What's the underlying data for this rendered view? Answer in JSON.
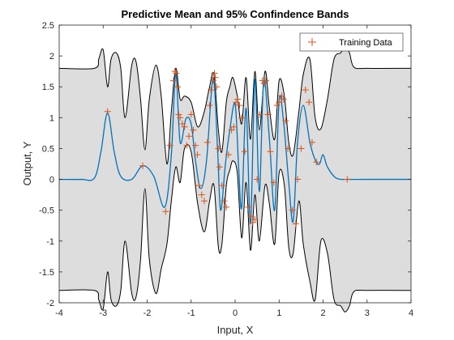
{
  "chart_data": {
    "type": "line",
    "title": "Predictive Mean and 95% Confindence Bands",
    "xlabel": "Input, X",
    "ylabel": "Output, Y",
    "xlim": [
      -4,
      4
    ],
    "ylim": [
      -2,
      2.5
    ],
    "xticks": [
      -4,
      -3,
      -2,
      -1,
      0,
      1,
      2,
      3,
      4
    ],
    "yticks": [
      -2,
      -1.5,
      -1,
      -0.5,
      0,
      0.5,
      1,
      1.5,
      2,
      2.5
    ],
    "xtick_labels": [
      "-4",
      "-3",
      "-2",
      "-1",
      "0",
      "1",
      "2",
      "3",
      "4"
    ],
    "ytick_labels": [
      "-2",
      "-1.5",
      "-1",
      "-0.5",
      "0",
      "0.5",
      "1",
      "1.5",
      "2",
      "2.5"
    ],
    "grid": false,
    "legend": {
      "placement": "top-right",
      "entries": [
        "Training Data"
      ]
    },
    "colors": {
      "mean": "#0072BD",
      "data": "#D95319",
      "band": "#DDDDDD",
      "bound": "#000000"
    },
    "series": [
      {
        "kind": "mean",
        "x": [
          -4,
          -3.5,
          -3.2,
          -3.05,
          -2.9,
          -2.75,
          -2.6,
          -2.35,
          -2.1,
          -1.85,
          -1.6,
          -1.45,
          -1.35,
          -1.25,
          -1.12,
          -1.0,
          -0.9,
          -0.78,
          -0.65,
          -0.5,
          -0.4,
          -0.33,
          -0.22,
          -0.12,
          0.0,
          0.08,
          0.15,
          0.25,
          0.35,
          0.45,
          0.55,
          0.65,
          0.78,
          0.9,
          1.0,
          1.1,
          1.22,
          1.32,
          1.42,
          1.55,
          1.7,
          1.83,
          1.92,
          2.0,
          2.1,
          2.3,
          2.6,
          3.0,
          4.0
        ],
        "y": [
          0,
          0,
          0.02,
          0.45,
          1.08,
          0.45,
          0.05,
          0.0,
          0.22,
          0.05,
          -0.45,
          0.4,
          1.72,
          0.6,
          0.98,
          0.9,
          0.3,
          -0.15,
          0.3,
          1.65,
          0.5,
          -0.5,
          0.25,
          0.8,
          1.22,
          0.2,
          -0.45,
          1.15,
          -0.72,
          1.62,
          -0.2,
          1.6,
          0.65,
          -0.5,
          1.28,
          0.95,
          -0.05,
          -0.68,
          0.6,
          1.2,
          0.6,
          0.3,
          0.25,
          0.4,
          0.2,
          0.02,
          0,
          0,
          0
        ]
      },
      {
        "kind": "upper",
        "x": [
          -4,
          -3.2,
          -3.1,
          -3.0,
          -2.9,
          -2.82,
          -2.7,
          -2.6,
          -2.5,
          -2.35,
          -2.25,
          -2.15,
          -2.05,
          -1.95,
          -1.8,
          -1.68,
          -1.55,
          -1.45,
          -1.35,
          -1.25,
          -1.15,
          -1.0,
          -0.85,
          -0.7,
          -0.58,
          -0.48,
          -0.38,
          -0.3,
          -0.2,
          -0.12,
          -0.05,
          0.05,
          0.15,
          0.25,
          0.35,
          0.45,
          0.55,
          0.68,
          0.78,
          0.9,
          1.0,
          1.12,
          1.22,
          1.32,
          1.45,
          1.55,
          1.7,
          1.82,
          1.95,
          2.1,
          2.25,
          2.4,
          2.5,
          2.6,
          2.7,
          3.0,
          4.0
        ],
        "y": [
          1.8,
          1.8,
          1.95,
          2.1,
          1.5,
          1.95,
          2.05,
          1.8,
          1.0,
          1.85,
          1.9,
          1.3,
          0.48,
          1.3,
          1.85,
          1.35,
          0.25,
          1.1,
          1.8,
          1.3,
          1.35,
          1.25,
          0.85,
          1.1,
          1.5,
          1.7,
          0.8,
          0.45,
          1.25,
          1.5,
          1.65,
          1.35,
          0.9,
          1.65,
          0.65,
          1.75,
          0.8,
          1.75,
          1.15,
          0.65,
          1.6,
          1.35,
          0.6,
          0.4,
          1.1,
          1.7,
          1.95,
          1.0,
          0.82,
          1.3,
          1.95,
          2.05,
          2.15,
          2.05,
          1.82,
          1.8,
          1.8
        ]
      },
      {
        "kind": "lower",
        "x": [
          -4,
          -3.2,
          -3.1,
          -3.0,
          -2.9,
          -2.82,
          -2.7,
          -2.6,
          -2.5,
          -2.35,
          -2.25,
          -2.15,
          -2.05,
          -1.95,
          -1.8,
          -1.68,
          -1.55,
          -1.45,
          -1.35,
          -1.25,
          -1.15,
          -1.0,
          -0.85,
          -0.7,
          -0.58,
          -0.48,
          -0.38,
          -0.3,
          -0.2,
          -0.12,
          -0.05,
          0.05,
          0.15,
          0.25,
          0.35,
          0.45,
          0.55,
          0.68,
          0.78,
          0.9,
          1.0,
          1.12,
          1.22,
          1.32,
          1.45,
          1.55,
          1.7,
          1.82,
          1.95,
          2.1,
          2.25,
          2.4,
          2.5,
          2.6,
          2.7,
          3.0,
          4.0
        ],
        "y": [
          -1.8,
          -1.8,
          -1.95,
          -2.1,
          -1.5,
          -1.95,
          -2.05,
          -1.8,
          -1.0,
          -1.85,
          -1.9,
          -1.3,
          -0.15,
          -1.3,
          -1.85,
          -1.45,
          -1.05,
          -0.35,
          0.2,
          -0.05,
          0.5,
          0.45,
          -0.4,
          -0.85,
          -0.35,
          -0.1,
          -1.1,
          -1.05,
          -0.1,
          0.15,
          0.3,
          0.1,
          -0.95,
          -0.05,
          -1.15,
          -0.25,
          -1.0,
          -0.1,
          -0.4,
          -1.05,
          0.1,
          -0.1,
          -1.1,
          -1.2,
          -0.35,
          -1.05,
          -1.65,
          -1.95,
          -1.0,
          -1.2,
          -1.95,
          -2.05,
          -2.15,
          -2.05,
          -1.82,
          -1.8,
          -1.8
        ]
      }
    ],
    "training_data": {
      "name": "Training Data",
      "x": [
        -2.9,
        -2.1,
        -1.58,
        -1.48,
        -1.4,
        -1.37,
        -1.34,
        -1.31,
        -1.28,
        -1.25,
        -1.2,
        -1.15,
        -1.1,
        -1.05,
        -1.0,
        -0.95,
        -0.9,
        -0.86,
        -0.82,
        -0.76,
        -0.7,
        -0.63,
        -0.58,
        -0.55,
        -0.5,
        -0.47,
        -0.45,
        -0.42,
        -0.38,
        -0.35,
        -0.3,
        -0.25,
        -0.2,
        -0.15,
        -0.08,
        -0.03,
        0.02,
        0.06,
        0.1,
        0.15,
        0.22,
        0.3,
        0.36,
        0.4,
        0.45,
        0.5,
        0.56,
        0.62,
        0.66,
        0.7,
        0.75,
        0.8,
        0.88,
        0.95,
        1.0,
        1.06,
        1.1,
        1.15,
        1.2,
        1.3,
        1.38,
        1.42,
        1.5,
        1.6,
        1.68,
        1.75,
        1.85,
        2.55
      ],
      "y": [
        1.1,
        0.22,
        -0.52,
        0.55,
        1.6,
        1.75,
        1.72,
        1.5,
        1.05,
        1.0,
        0.9,
        0.85,
        0.55,
        0.7,
        1.05,
        0.8,
        0.55,
        0.4,
        -0.1,
        -0.25,
        -0.35,
        0.6,
        1.2,
        1.45,
        1.6,
        1.72,
        1.65,
        1.5,
        0.5,
        0.2,
        -0.1,
        -0.35,
        -0.45,
        0.4,
        0.8,
        0.85,
        1.25,
        1.3,
        1.2,
        1.0,
        0.45,
        -0.45,
        -0.6,
        -0.7,
        -0.65,
        0.0,
        1.05,
        1.6,
        1.55,
        1.6,
        1.05,
        0.45,
        -0.05,
        1.2,
        1.25,
        1.35,
        1.3,
        0.95,
        0.5,
        -0.5,
        -0.72,
        0.0,
        0.5,
        1.45,
        1.25,
        0.6,
        0.28,
        0.0
      ]
    }
  }
}
